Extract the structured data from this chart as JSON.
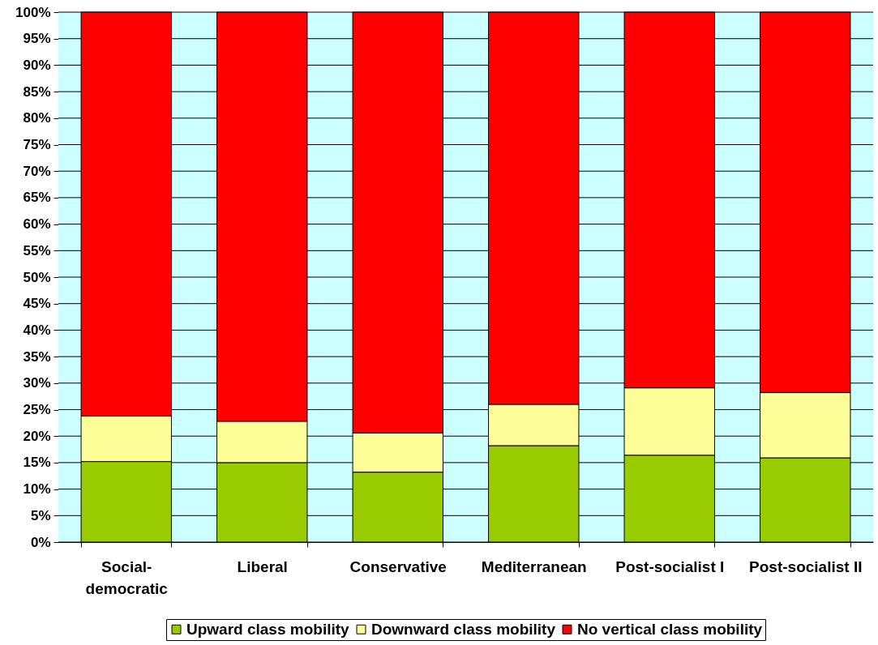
{
  "chart_data": {
    "type": "bar",
    "stacked": true,
    "categories": [
      "Social-democratic",
      "Liberal",
      "Conservative",
      "Mediterranean",
      "Post-socialist I",
      "Post-socialist II"
    ],
    "series": [
      {
        "name": "Upward class mobility",
        "color": "#99cc00",
        "values": [
          15.2,
          15.0,
          13.2,
          18.2,
          16.4,
          15.9
        ]
      },
      {
        "name": "Downward class mobility",
        "color": "#ffff99",
        "values": [
          8.6,
          7.8,
          7.4,
          7.8,
          12.7,
          12.3
        ]
      },
      {
        "name": "No vertical class mobility",
        "color": "#ff0000",
        "values": [
          76.2,
          77.2,
          79.4,
          74.0,
          70.9,
          71.8
        ]
      }
    ],
    "ylim": [
      0,
      100
    ],
    "yticks": [
      {
        "value": 0,
        "label": "0%"
      },
      {
        "value": 5,
        "label": "5%"
      },
      {
        "value": 10,
        "label": "10%"
      },
      {
        "value": 15,
        "label": "15%"
      },
      {
        "value": 20,
        "label": "20%"
      },
      {
        "value": 25,
        "label": "25%"
      },
      {
        "value": 30,
        "label": "30%"
      },
      {
        "value": 35,
        "label": "35%"
      },
      {
        "value": 40,
        "label": "40%"
      },
      {
        "value": 45,
        "label": "45%"
      },
      {
        "value": 50,
        "label": "50%"
      },
      {
        "value": 55,
        "label": "55%"
      },
      {
        "value": 60,
        "label": "60%"
      },
      {
        "value": 65,
        "label": "65%"
      },
      {
        "value": 70,
        "label": "70%"
      },
      {
        "value": 75,
        "label": "75%"
      },
      {
        "value": 80,
        "label": "80%"
      },
      {
        "value": 85,
        "label": "85%"
      },
      {
        "value": 90,
        "label": "90%"
      },
      {
        "value": 95,
        "label": "95%"
      },
      {
        "value": 100,
        "label": "100%"
      }
    ],
    "bands": [
      {
        "axis": "y",
        "from": 0,
        "to": 100,
        "color": "#ccffff"
      }
    ],
    "grid": "y",
    "legend": "bottom"
  }
}
